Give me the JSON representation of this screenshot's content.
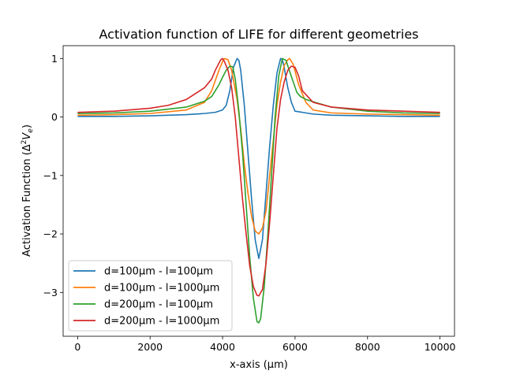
{
  "chart_data": {
    "type": "line",
    "title": "Activation function of LIFE for different geometries",
    "xlabel": "x-axis (µm)",
    "ylabel_main": "Activation Function (Δ",
    "ylabel_sup": "2",
    "ylabel_var": "V",
    "ylabel_sub": "e",
    "ylabel_end": ")",
    "xlim": [
      -400,
      10400
    ],
    "ylim": [
      -3.75,
      1.22
    ],
    "xticks": [
      0,
      2000,
      4000,
      6000,
      8000,
      10000
    ],
    "xtick_labels": [
      "0",
      "2000",
      "4000",
      "6000",
      "8000",
      "10000"
    ],
    "yticks": [
      1,
      0,
      -1,
      -2,
      -3
    ],
    "ytick_labels": [
      "1",
      "0",
      "−1",
      "−2",
      "−3"
    ],
    "grid": false,
    "legend_position": "lower-left",
    "series": [
      {
        "name": "d=100µm - l=100µm",
        "color": "#1f77b4",
        "points": [
          [
            0,
            0.01
          ],
          [
            1000,
            0.01
          ],
          [
            2000,
            0.02
          ],
          [
            3000,
            0.04
          ],
          [
            3500,
            0.06
          ],
          [
            3800,
            0.08
          ],
          [
            3900,
            0.1
          ],
          [
            4000,
            0.12
          ],
          [
            4100,
            0.2
          ],
          [
            4200,
            0.45
          ],
          [
            4300,
            0.85
          ],
          [
            4400,
            1.0
          ],
          [
            4450,
            0.97
          ],
          [
            4500,
            0.8
          ],
          [
            4600,
            0.2
          ],
          [
            4700,
            -0.6
          ],
          [
            4800,
            -1.4
          ],
          [
            4900,
            -2.1
          ],
          [
            5000,
            -2.42
          ],
          [
            5100,
            -2.1
          ],
          [
            5200,
            -1.3
          ],
          [
            5300,
            -0.5
          ],
          [
            5400,
            0.2
          ],
          [
            5500,
            0.75
          ],
          [
            5600,
            1.0
          ],
          [
            5650,
            0.98
          ],
          [
            5700,
            0.85
          ],
          [
            5800,
            0.5
          ],
          [
            5900,
            0.25
          ],
          [
            6000,
            0.1
          ],
          [
            6200,
            0.08
          ],
          [
            6500,
            0.05
          ],
          [
            7000,
            0.03
          ],
          [
            8000,
            0.02
          ],
          [
            9000,
            0.01
          ],
          [
            10000,
            0.01
          ]
        ]
      },
      {
        "name": "d=100µm - l=1000µm",
        "color": "#ff7f0e",
        "points": [
          [
            0,
            0.03
          ],
          [
            1000,
            0.04
          ],
          [
            2000,
            0.06
          ],
          [
            3000,
            0.12
          ],
          [
            3500,
            0.25
          ],
          [
            3700,
            0.45
          ],
          [
            3900,
            0.8
          ],
          [
            4000,
            0.95
          ],
          [
            4050,
            1.0
          ],
          [
            4150,
            0.98
          ],
          [
            4250,
            0.8
          ],
          [
            4400,
            0.3
          ],
          [
            4500,
            -0.2
          ],
          [
            4600,
            -0.8
          ],
          [
            4700,
            -1.3
          ],
          [
            4800,
            -1.7
          ],
          [
            4900,
            -1.95
          ],
          [
            5000,
            -2.0
          ],
          [
            5100,
            -1.9
          ],
          [
            5200,
            -1.6
          ],
          [
            5300,
            -1.0
          ],
          [
            5400,
            -0.4
          ],
          [
            5500,
            0.2
          ],
          [
            5600,
            0.6
          ],
          [
            5700,
            0.88
          ],
          [
            5800,
            0.98
          ],
          [
            5850,
            1.0
          ],
          [
            5950,
            0.9
          ],
          [
            6100,
            0.55
          ],
          [
            6300,
            0.25
          ],
          [
            6500,
            0.12
          ],
          [
            7000,
            0.07
          ],
          [
            8000,
            0.05
          ],
          [
            9000,
            0.04
          ],
          [
            10000,
            0.03
          ]
        ]
      },
      {
        "name": "d=200µm - l=100µm",
        "color": "#2ca02c",
        "points": [
          [
            0,
            0.06
          ],
          [
            1000,
            0.07
          ],
          [
            2000,
            0.1
          ],
          [
            3000,
            0.17
          ],
          [
            3500,
            0.27
          ],
          [
            3700,
            0.35
          ],
          [
            3800,
            0.45
          ],
          [
            3900,
            0.55
          ],
          [
            4000,
            0.68
          ],
          [
            4100,
            0.8
          ],
          [
            4200,
            0.87
          ],
          [
            4280,
            0.86
          ],
          [
            4350,
            0.65
          ],
          [
            4450,
            0.1
          ],
          [
            4550,
            -0.6
          ],
          [
            4650,
            -1.5
          ],
          [
            4750,
            -2.4
          ],
          [
            4850,
            -3.1
          ],
          [
            4950,
            -3.5
          ],
          [
            5000,
            -3.52
          ],
          [
            5050,
            -3.45
          ],
          [
            5150,
            -2.9
          ],
          [
            5250,
            -2.0
          ],
          [
            5350,
            -1.0
          ],
          [
            5450,
            0.0
          ],
          [
            5550,
            0.7
          ],
          [
            5650,
            1.0
          ],
          [
            5750,
            0.97
          ],
          [
            5850,
            0.78
          ],
          [
            5950,
            0.6
          ],
          [
            6050,
            0.42
          ],
          [
            6150,
            0.35
          ],
          [
            6300,
            0.3
          ],
          [
            6500,
            0.26
          ],
          [
            7000,
            0.17
          ],
          [
            8000,
            0.1
          ],
          [
            9000,
            0.07
          ],
          [
            10000,
            0.06
          ]
        ]
      },
      {
        "name": "d=200µm - l=1000µm",
        "color": "#d62728",
        "points": [
          [
            0,
            0.08
          ],
          [
            1000,
            0.1
          ],
          [
            2000,
            0.15
          ],
          [
            2500,
            0.2
          ],
          [
            3000,
            0.3
          ],
          [
            3500,
            0.5
          ],
          [
            3700,
            0.65
          ],
          [
            3800,
            0.8
          ],
          [
            3900,
            0.92
          ],
          [
            3950,
            0.98
          ],
          [
            4000,
            1.0
          ],
          [
            4050,
            0.95
          ],
          [
            4150,
            0.8
          ],
          [
            4250,
            0.5
          ],
          [
            4350,
            0.0
          ],
          [
            4450,
            -0.7
          ],
          [
            4550,
            -1.4
          ],
          [
            4650,
            -2.0
          ],
          [
            4750,
            -2.55
          ],
          [
            4850,
            -2.9
          ],
          [
            4950,
            -3.05
          ],
          [
            5000,
            -3.06
          ],
          [
            5100,
            -2.95
          ],
          [
            5200,
            -2.5
          ],
          [
            5300,
            -1.8
          ],
          [
            5400,
            -1.0
          ],
          [
            5500,
            -0.2
          ],
          [
            5600,
            0.3
          ],
          [
            5700,
            0.6
          ],
          [
            5800,
            0.8
          ],
          [
            5900,
            0.87
          ],
          [
            6000,
            0.85
          ],
          [
            6100,
            0.7
          ],
          [
            6200,
            0.45
          ],
          [
            6350,
            0.35
          ],
          [
            6500,
            0.25
          ],
          [
            7000,
            0.17
          ],
          [
            8000,
            0.12
          ],
          [
            9000,
            0.1
          ],
          [
            10000,
            0.08
          ]
        ]
      }
    ]
  }
}
